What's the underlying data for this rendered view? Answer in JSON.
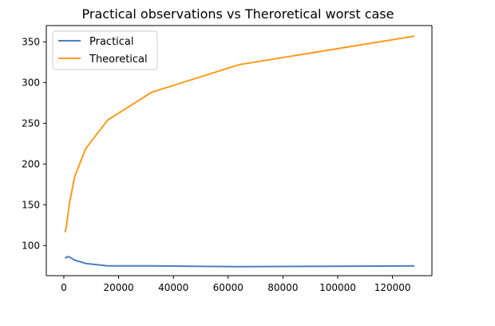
{
  "chart_data": {
    "type": "line",
    "title": "Practical observations vs Theroretical worst case",
    "xlabel": "",
    "ylabel": "",
    "xlim": [
      -6400,
      134400
    ],
    "ylim": [
      63,
      370
    ],
    "grid": false,
    "legend_position": "top-left",
    "x_ticks": [
      0,
      20000,
      40000,
      60000,
      80000,
      100000,
      120000
    ],
    "y_ticks": [
      100,
      150,
      200,
      250,
      300,
      350
    ],
    "series": [
      {
        "name": "Practical",
        "color": "#4c7fbe",
        "x": [
          500,
          1000,
          2000,
          4000,
          8000,
          16000,
          32000,
          64000,
          128000
        ],
        "y": [
          84,
          86,
          86,
          82,
          78,
          75,
          75,
          74,
          75
        ]
      },
      {
        "name": "Theoretical",
        "color": "#ff9a1a",
        "x": [
          500,
          1000,
          2000,
          4000,
          8000,
          16000,
          32000,
          64000,
          128000
        ],
        "y": [
          116,
          125,
          151,
          185,
          219,
          254,
          288,
          322,
          357
        ]
      }
    ]
  }
}
